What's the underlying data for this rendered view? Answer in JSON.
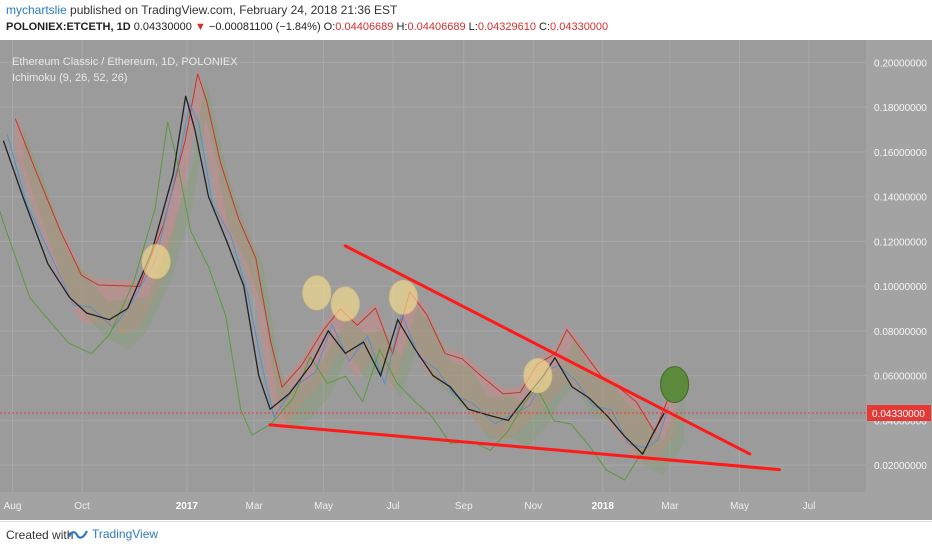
{
  "header": {
    "user": "mychartslie",
    "published_text": "published on TradingView.com, February 24, 2018 21:36 EST",
    "symbol": "POLONIEX:ETCETH, 1D",
    "last": "0.04330000",
    "change": "−0.00081100 (−1.84%)",
    "open_label": "O:",
    "open": "0.04406689",
    "high_label": "H:",
    "high": "0.04406689",
    "low_label": "L:",
    "low": "0.04329610",
    "close_label": "C:",
    "close": "0.04330000"
  },
  "legend": {
    "title": "Ethereum Classic / Ethereum, 1D, POLONIEX",
    "indicator": "Ichimoku (9, 26, 52, 26)"
  },
  "footer": {
    "created_with": "Created with",
    "brand": "TradingView"
  },
  "colors": {
    "plot_bg": "#9b9b9b",
    "axis_bg": "#a3a3a3",
    "trendline": "#ff1a1a",
    "price_tag": "#e53935",
    "highlight": "#f6df8e",
    "target": "#5b8a3c",
    "cloud_bear": "#c98a8a",
    "cloud_bull": "#7fa16a"
  },
  "chart_data": {
    "type": "line",
    "title": "Ethereum Classic / Ethereum, 1D, POLONIEX",
    "x_ticks": [
      "Aug",
      "Oct",
      "2017",
      "Mar",
      "May",
      "Jul",
      "Sep",
      "Nov",
      "2018",
      "Mar",
      "May",
      "Jul"
    ],
    "y_ticks": [
      "0.20000000",
      "0.18000000",
      "0.16000000",
      "0.14000000",
      "0.12000000",
      "0.10000000",
      "0.08000000",
      "0.06000000",
      "0.04000000",
      "0.02000000"
    ],
    "ylim": [
      0.008,
      0.21
    ],
    "last_price": "0.04330000",
    "series": [
      {
        "name": "ETCETH",
        "x": [
          "2016-07-24",
          "2016-08-10",
          "2016-09-01",
          "2016-09-20",
          "2016-10-05",
          "2016-10-25",
          "2016-11-10",
          "2016-12-01",
          "2016-12-20",
          "2016-12-31",
          "2017-01-08",
          "2017-01-20",
          "2017-02-05",
          "2017-02-20",
          "2017-03-05",
          "2017-03-15",
          "2017-04-01",
          "2017-04-20",
          "2017-05-05",
          "2017-05-20",
          "2017-06-05",
          "2017-06-20",
          "2017-07-05",
          "2017-07-20",
          "2017-08-05",
          "2017-08-20",
          "2017-09-05",
          "2017-09-25",
          "2017-10-10",
          "2017-10-25",
          "2017-11-10",
          "2017-11-20",
          "2017-12-05",
          "2017-12-20",
          "2018-01-05",
          "2018-01-20",
          "2018-02-05",
          "2018-02-15",
          "2018-02-24"
        ],
        "values": [
          0.165,
          0.14,
          0.11,
          0.095,
          0.088,
          0.085,
          0.09,
          0.115,
          0.15,
          0.185,
          0.17,
          0.14,
          0.12,
          0.1,
          0.06,
          0.045,
          0.052,
          0.065,
          0.08,
          0.07,
          0.075,
          0.06,
          0.085,
          0.072,
          0.06,
          0.055,
          0.045,
          0.042,
          0.04,
          0.05,
          0.06,
          0.068,
          0.055,
          0.05,
          0.042,
          0.033,
          0.025,
          0.035,
          0.0433
        ]
      }
    ],
    "trendlines": [
      {
        "name": "upper",
        "from": [
          "2017-05-20",
          0.118
        ],
        "to": [
          "2018-05-10",
          0.025
        ]
      },
      {
        "name": "lower",
        "from": [
          "2017-03-15",
          0.038
        ],
        "to": [
          "2018-06-05",
          0.018
        ]
      }
    ],
    "highlights": [
      {
        "x": "2016-12-05",
        "y": 0.111
      },
      {
        "x": "2017-04-25",
        "y": 0.097
      },
      {
        "x": "2017-05-20",
        "y": 0.092
      },
      {
        "x": "2017-07-10",
        "y": 0.095
      },
      {
        "x": "2017-11-05",
        "y": 0.06
      }
    ],
    "target": {
      "x": "2018-03-05",
      "y": 0.056
    }
  }
}
